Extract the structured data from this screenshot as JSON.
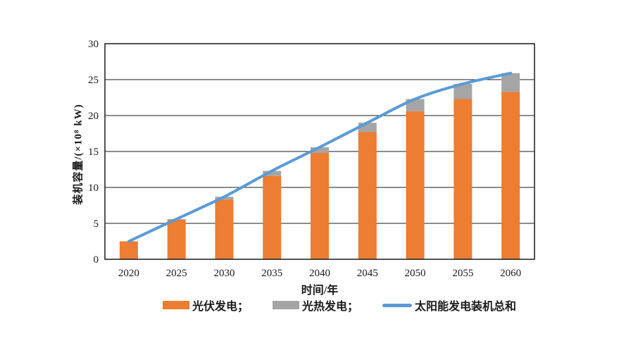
{
  "chart_data": {
    "type": "bar",
    "subtype": "stacked-bar-with-line",
    "title": "",
    "categories": [
      "2020",
      "2025",
      "2030",
      "2035",
      "2040",
      "2045",
      "2050",
      "2055",
      "2060"
    ],
    "series": [
      {
        "name": "光伏发电",
        "type": "bar",
        "stack": true,
        "color": "#ED7D31",
        "values": [
          2.5,
          5.5,
          8.3,
          11.6,
          14.8,
          17.7,
          20.6,
          22.3,
          23.3
        ]
      },
      {
        "name": "光热发电",
        "type": "bar",
        "stack": true,
        "color": "#A5A5A5",
        "values": [
          0.0,
          0.1,
          0.4,
          0.7,
          0.8,
          1.3,
          1.7,
          2.1,
          2.6
        ]
      },
      {
        "name": "太阳能发电装机总和",
        "type": "line",
        "color": "#5B9BD5",
        "values": [
          2.5,
          5.6,
          8.7,
          12.3,
          15.6,
          19.0,
          22.3,
          24.4,
          25.9
        ]
      }
    ],
    "xlabel": "时间/年",
    "ylabel": "装机容量/(×10⁸ kW)",
    "ylim": [
      0,
      30
    ],
    "yticks": [
      0,
      5,
      10,
      15,
      20,
      25,
      30
    ],
    "grid": true,
    "grid_color": "#1a1a1a",
    "axis_color": "#1a1a1a",
    "background": "#ffffff",
    "legend_position": "bottom",
    "legend": [
      {
        "label": "光伏发电；",
        "swatch": "bar",
        "color": "#ED7D31"
      },
      {
        "label": "光热发电；",
        "swatch": "bar",
        "color": "#A5A5A5"
      },
      {
        "label": "太阳能发电装机总和",
        "swatch": "line",
        "color": "#5B9BD5"
      }
    ]
  }
}
